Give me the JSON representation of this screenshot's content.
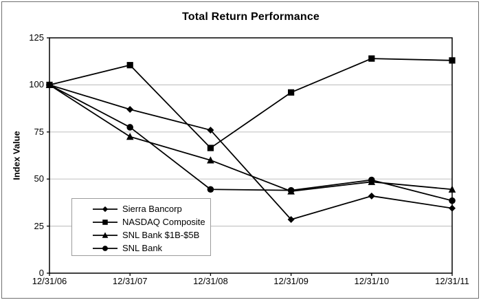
{
  "chart_data": {
    "type": "line",
    "title": "Total Return Performance",
    "xlabel": "",
    "ylabel": "Index Value",
    "categories": [
      "12/31/06",
      "12/31/07",
      "12/31/08",
      "12/31/09",
      "12/31/10",
      "12/31/11"
    ],
    "y_ticks": [
      0,
      25,
      50,
      75,
      100,
      125
    ],
    "ylim": [
      0,
      125
    ],
    "grid": true,
    "legend_position": "inside-bottom-left",
    "series": [
      {
        "name": "Sierra Bancorp",
        "marker": "diamond",
        "values": [
          100,
          87,
          76,
          28.5,
          41,
          34.5
        ]
      },
      {
        "name": "NASDAQ Composite",
        "marker": "square",
        "values": [
          100,
          110.5,
          66.5,
          96,
          114,
          113
        ]
      },
      {
        "name": "SNL Bank $1B-$5B",
        "marker": "triangle",
        "values": [
          100,
          72.5,
          60,
          43.5,
          48.5,
          44.5
        ]
      },
      {
        "name": "SNL Bank",
        "marker": "circle",
        "values": [
          100,
          77.5,
          44.5,
          44,
          49.5,
          38.5
        ]
      }
    ],
    "colors": {
      "line": "#000000",
      "grid": "#c6c6c6",
      "plot_border": "#000000",
      "legend_border": "#9b9b9b",
      "background": "#ffffff",
      "figure_border": "#6e6e6e"
    }
  }
}
